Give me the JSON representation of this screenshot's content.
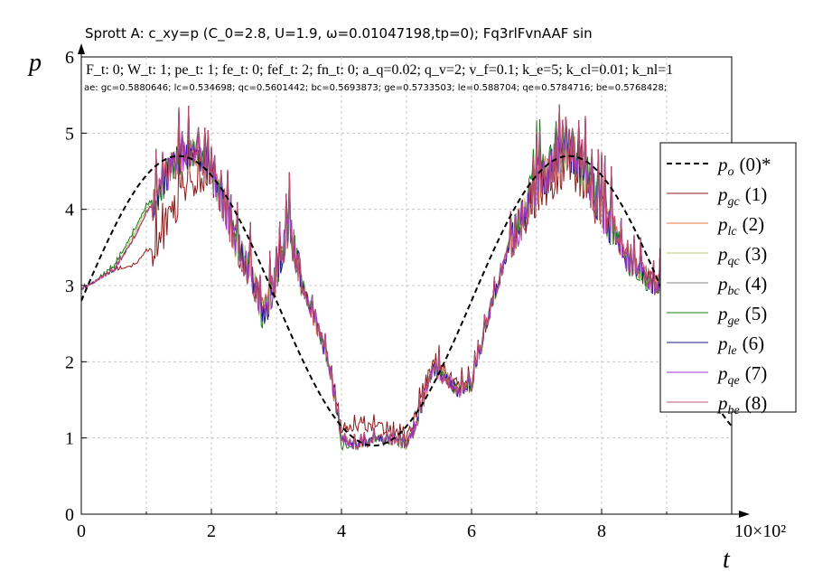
{
  "title": "Sprott A: c_xy=p (C_0=2.8, U=1.9, ω=0.01047198,tp=0); Fq3rlFvnAAF sin",
  "params_line": "F_t: 0; W_t: 1; pe_t: 1; fe_t: 0; fef_t: 2; fn_t: 0; a_q=0.02; q_v=2; v_f=0.1; k_e=5; k_cl=0.01; k_nl=1",
  "errors_line": "ae: gc=0.5880646; lc=0.534698; qc=0.5601442; bc=0.5693873; ge=0.5733503; le=0.588704; qe=0.5784716; be=0.5768428;",
  "chart_data": {
    "type": "line",
    "xlabel": "t",
    "ylabel": "p",
    "x_multiplier_label": "10×10²",
    "xlim": [
      0,
      10
    ],
    "ylim": [
      0,
      6
    ],
    "x_ticks": [
      "0",
      "2",
      "4",
      "6",
      "8"
    ],
    "y_ticks": [
      "0",
      "1",
      "2",
      "3",
      "4",
      "5",
      "6"
    ],
    "grid": true,
    "legend_position": "right",
    "reference": {
      "name": "p_o (0)*",
      "label_main": "p",
      "label_sub": "o",
      "label_suffix": "(0)*",
      "style": "dashed",
      "color": "#000000",
      "formula": "2.8 + 1.9*sin(0.01047198*100*t)"
    },
    "series": [
      {
        "name": "p_gc (1)",
        "label_sub": "gc",
        "label_suffix": "(1)",
        "color": "#8b1a1a"
      },
      {
        "name": "p_lc (2)",
        "label_sub": "lc",
        "label_suffix": "(2)",
        "color": "#e8773a"
      },
      {
        "name": "p_qc (3)",
        "label_sub": "qc",
        "label_suffix": "(3)",
        "color": "#b8cc6e"
      },
      {
        "name": "p_bc (4)",
        "label_sub": "bc",
        "label_suffix": "(4)",
        "color": "#888888"
      },
      {
        "name": "p_ge (5)",
        "label_sub": "ge",
        "label_suffix": "(5)",
        "color": "#1a7a1a"
      },
      {
        "name": "p_le (6)",
        "label_sub": "le",
        "label_suffix": "(6)",
        "color": "#1a1a8a"
      },
      {
        "name": "p_qe (7)",
        "label_sub": "qe",
        "label_suffix": "(7)",
        "color": "#9b2fd6"
      },
      {
        "name": "p_be (8)",
        "label_sub": "be",
        "label_suffix": "(8)",
        "color": "#c0506a"
      }
    ],
    "approx_trajectory": {
      "x": [
        0,
        0.2,
        0.5,
        0.8,
        1.0,
        1.2,
        1.4,
        1.6,
        1.8,
        2.0,
        2.2,
        2.4,
        2.6,
        2.8,
        3.0,
        3.2,
        3.4,
        3.6,
        3.8,
        4.0,
        4.2,
        4.4,
        4.6,
        4.8,
        5.0,
        5.2,
        5.4,
        5.6,
        5.8,
        6.0,
        6.2,
        6.4,
        6.6,
        6.8,
        7.0,
        7.2,
        7.4,
        7.6,
        7.8,
        8.0,
        8.2,
        8.4,
        8.6,
        8.8,
        9.0
      ],
      "y": [
        2.95,
        3.05,
        3.2,
        3.6,
        3.95,
        4.2,
        4.6,
        4.7,
        4.75,
        4.5,
        4.0,
        3.5,
        3.2,
        2.6,
        3.1,
        3.8,
        3.0,
        2.5,
        2.0,
        1.0,
        0.9,
        0.95,
        1.0,
        0.95,
        0.9,
        1.3,
        1.9,
        1.8,
        1.6,
        1.7,
        2.4,
        3.0,
        3.6,
        3.9,
        4.3,
        4.5,
        4.8,
        4.7,
        4.4,
        4.0,
        3.7,
        3.3,
        3.2,
        3.0,
        3.1
      ]
    },
    "series_offsets": [
      [
        0,
        0,
        0,
        -0.35,
        -0.5,
        -0.7,
        -0.6,
        -0.5,
        -0.3,
        -0.2,
        0,
        0,
        0,
        0,
        0,
        0,
        0,
        0,
        0,
        0.1,
        0.25,
        0.2,
        0.15,
        0.1,
        0.1,
        0.1,
        0.1,
        0.1,
        0.1,
        0.05,
        0,
        0,
        0,
        0,
        -0.2,
        -0.2,
        -0.3,
        -0.2,
        -0.1,
        0,
        0,
        0,
        0,
        0,
        0
      ],
      [
        0,
        0,
        0,
        0,
        0,
        0,
        0,
        0,
        0,
        0,
        0,
        0,
        0,
        0,
        0,
        0,
        0,
        0,
        0,
        0,
        0,
        0,
        0,
        0,
        0,
        0,
        0,
        0,
        0,
        0,
        0,
        0,
        0,
        0,
        0,
        0,
        0,
        0,
        0,
        0,
        0,
        0,
        0,
        0,
        0
      ],
      [
        0,
        0,
        0,
        0.05,
        0.05,
        0,
        0,
        0,
        0,
        0,
        0,
        0,
        0,
        0,
        0,
        0,
        0,
        0,
        0,
        0,
        0,
        0,
        0,
        0,
        0,
        0,
        0,
        0,
        0,
        0,
        0,
        0,
        0,
        0,
        0,
        0,
        0,
        0,
        0,
        0,
        0,
        0,
        0,
        0,
        0
      ],
      [
        0,
        0,
        0,
        0,
        0,
        0,
        0,
        0,
        0,
        0,
        0,
        0,
        0,
        0,
        0,
        0,
        0,
        0,
        0,
        0,
        0,
        0,
        0,
        0,
        0,
        0,
        0,
        0,
        0,
        0,
        0,
        0,
        0,
        0,
        0,
        0,
        0,
        0,
        0,
        0,
        0,
        0,
        0,
        0,
        0
      ],
      [
        0,
        0,
        0.05,
        0.1,
        0.1,
        0,
        0,
        0,
        0,
        0,
        0,
        0,
        0,
        0,
        0,
        0,
        0,
        0,
        0,
        -0.1,
        0,
        0,
        0,
        0,
        0,
        0,
        0,
        0,
        0,
        0,
        0,
        0,
        0,
        0,
        0.15,
        0.1,
        0,
        0,
        0,
        0,
        0,
        0,
        -0.1,
        0,
        0
      ],
      [
        0,
        0,
        0,
        0,
        0,
        0,
        0,
        0,
        0,
        0,
        0,
        0,
        0,
        0,
        0,
        0,
        0,
        0,
        0,
        0,
        0,
        0,
        0,
        0,
        0,
        0,
        0,
        0,
        0,
        0,
        0,
        0,
        0,
        0,
        0,
        0,
        0,
        0,
        0,
        0,
        0,
        0,
        0,
        0,
        0
      ],
      [
        0,
        0,
        0,
        0,
        0,
        0,
        0,
        0,
        0,
        0,
        0,
        0,
        0,
        0,
        0,
        0,
        0,
        0,
        0,
        0,
        0,
        0,
        0,
        0,
        0,
        0,
        0,
        0,
        0,
        0,
        0,
        0,
        0,
        0,
        0,
        0,
        0,
        0,
        0,
        0,
        0,
        0,
        0,
        0,
        0
      ],
      [
        0,
        0,
        0,
        0,
        0,
        0,
        0,
        0,
        0,
        0,
        0,
        0,
        0,
        0,
        0,
        0,
        0,
        0,
        0,
        0,
        0,
        0,
        0,
        0,
        0,
        0,
        0,
        0,
        0,
        0,
        0,
        0,
        0,
        0,
        0,
        0,
        0,
        0,
        0,
        0,
        0,
        0,
        0,
        0,
        0
      ]
    ]
  }
}
